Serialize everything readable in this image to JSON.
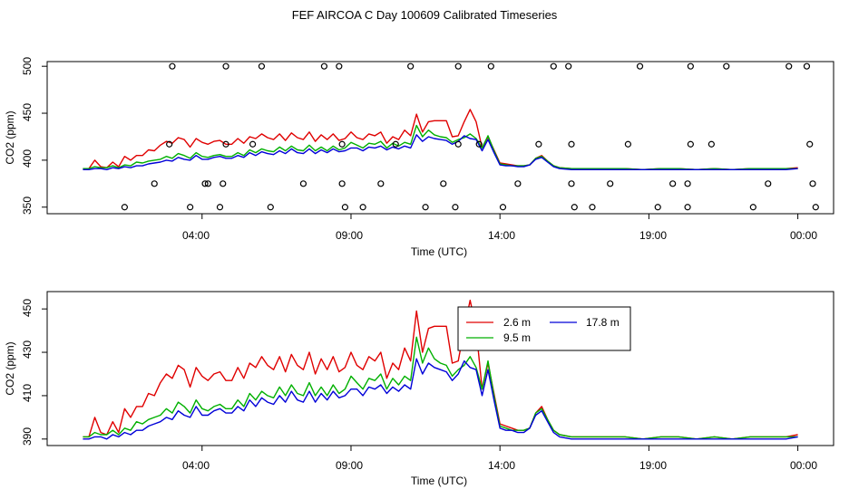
{
  "figure": {
    "title": "FEF AIRCOA C  Day 100609  Calibrated Timeseries"
  },
  "colors": {
    "red": "#e00000",
    "green": "#00b000",
    "blue": "#0000d8",
    "axis": "#000000"
  },
  "chart_data": [
    {
      "type": "line+scatter",
      "title": "",
      "xlabel": "Time (UTC)",
      "ylabel": "CO2 (ppm)",
      "xlim": [
        -1.2,
        25.2
      ],
      "ylim": [
        343,
        505
      ],
      "xticks": [
        4,
        9,
        14,
        19,
        24
      ],
      "xtick_labels": [
        "04:00",
        "09:00",
        "14:00",
        "19:00",
        "00:00"
      ],
      "yticks": [
        350,
        400,
        450,
        500
      ],
      "ytick_labels": [
        "350",
        "400",
        "450",
        "500"
      ],
      "calibration_points": [
        {
          "x": 1.4,
          "y": 350
        },
        {
          "x": 2.4,
          "y": 375
        },
        {
          "x": 2.9,
          "y": 417
        },
        {
          "x": 3.0,
          "y": 500
        },
        {
          "x": 3.6,
          "y": 350
        },
        {
          "x": 4.1,
          "y": 375
        },
        {
          "x": 4.2,
          "y": 375
        },
        {
          "x": 4.6,
          "y": 350
        },
        {
          "x": 4.7,
          "y": 375
        },
        {
          "x": 4.8,
          "y": 417
        },
        {
          "x": 4.8,
          "y": 500
        },
        {
          "x": 5.7,
          "y": 417
        },
        {
          "x": 6.0,
          "y": 500
        },
        {
          "x": 6.3,
          "y": 350
        },
        {
          "x": 7.4,
          "y": 375
        },
        {
          "x": 8.1,
          "y": 500
        },
        {
          "x": 8.6,
          "y": 500
        },
        {
          "x": 8.7,
          "y": 417
        },
        {
          "x": 8.7,
          "y": 375
        },
        {
          "x": 8.8,
          "y": 350
        },
        {
          "x": 9.4,
          "y": 350
        },
        {
          "x": 10.0,
          "y": 375
        },
        {
          "x": 10.5,
          "y": 417
        },
        {
          "x": 11.0,
          "y": 500
        },
        {
          "x": 11.5,
          "y": 350
        },
        {
          "x": 12.1,
          "y": 375
        },
        {
          "x": 12.5,
          "y": 350
        },
        {
          "x": 12.6,
          "y": 417
        },
        {
          "x": 12.6,
          "y": 500
        },
        {
          "x": 13.3,
          "y": 417
        },
        {
          "x": 13.7,
          "y": 500
        },
        {
          "x": 14.1,
          "y": 350
        },
        {
          "x": 14.6,
          "y": 375
        },
        {
          "x": 15.3,
          "y": 417
        },
        {
          "x": 15.8,
          "y": 500
        },
        {
          "x": 16.3,
          "y": 500
        },
        {
          "x": 16.4,
          "y": 417
        },
        {
          "x": 16.4,
          "y": 375
        },
        {
          "x": 16.5,
          "y": 350
        },
        {
          "x": 17.1,
          "y": 350
        },
        {
          "x": 17.7,
          "y": 375
        },
        {
          "x": 18.3,
          "y": 417
        },
        {
          "x": 18.7,
          "y": 500
        },
        {
          "x": 19.3,
          "y": 350
        },
        {
          "x": 19.8,
          "y": 375
        },
        {
          "x": 20.3,
          "y": 350
        },
        {
          "x": 20.3,
          "y": 375
        },
        {
          "x": 20.4,
          "y": 417
        },
        {
          "x": 20.4,
          "y": 500
        },
        {
          "x": 21.1,
          "y": 417
        },
        {
          "x": 21.6,
          "y": 500
        },
        {
          "x": 22.5,
          "y": 350
        },
        {
          "x": 23.0,
          "y": 375
        },
        {
          "x": 23.7,
          "y": 500
        },
        {
          "x": 24.3,
          "y": 500
        },
        {
          "x": 24.4,
          "y": 417
        },
        {
          "x": 24.5,
          "y": 375
        },
        {
          "x": 24.6,
          "y": 350
        }
      ]
    },
    {
      "type": "line",
      "title": "",
      "xlabel": "Time (UTC)",
      "ylabel": "CO2 (ppm)",
      "xlim": [
        -1.2,
        25.2
      ],
      "ylim": [
        387,
        458
      ],
      "xticks": [
        4,
        9,
        14,
        19,
        24
      ],
      "xtick_labels": [
        "04:00",
        "09:00",
        "14:00",
        "19:00",
        "00:00"
      ],
      "yticks": [
        390,
        410,
        430,
        450
      ],
      "ytick_labels": [
        "390",
        "410",
        "430",
        "450"
      ],
      "legend": {
        "position": "top-right",
        "entries": [
          {
            "label": "2.6 m",
            "color": "#e00000"
          },
          {
            "label": "9.5 m",
            "color": "#00b000"
          },
          {
            "label": "17.8 m",
            "color": "#0000d8"
          }
        ]
      }
    }
  ],
  "series_shared": {
    "x": [
      0.0,
      0.2,
      0.4,
      0.6,
      0.8,
      1.0,
      1.2,
      1.4,
      1.6,
      1.8,
      2.0,
      2.2,
      2.4,
      2.6,
      2.8,
      3.0,
      3.2,
      3.4,
      3.6,
      3.8,
      4.0,
      4.2,
      4.4,
      4.6,
      4.8,
      5.0,
      5.2,
      5.4,
      5.6,
      5.8,
      6.0,
      6.2,
      6.4,
      6.6,
      6.8,
      7.0,
      7.2,
      7.4,
      7.6,
      7.8,
      8.0,
      8.2,
      8.4,
      8.6,
      8.8,
      9.0,
      9.2,
      9.4,
      9.6,
      9.8,
      10.0,
      10.2,
      10.4,
      10.6,
      10.8,
      11.0,
      11.2,
      11.4,
      11.6,
      11.8,
      12.0,
      12.2,
      12.4,
      12.6,
      12.8,
      13.0,
      13.2,
      13.4,
      13.6,
      13.8,
      14.0,
      14.2,
      14.4,
      14.6,
      14.8,
      15.0,
      15.2,
      15.4,
      15.6,
      15.8,
      16.0,
      16.4,
      17.0,
      17.6,
      18.2,
      18.8,
      19.4,
      20.0,
      20.6,
      21.2,
      21.8,
      22.4,
      23.0,
      23.6,
      24.0
    ],
    "series": [
      {
        "name": "2.6 m",
        "color": "#e00000",
        "values": [
          391,
          391,
          400,
          393,
          392,
          398,
          393,
          404,
          400,
          405,
          405,
          411,
          410,
          416,
          420,
          418,
          424,
          422,
          414,
          423,
          419,
          417,
          420,
          421,
          417,
          417,
          423,
          418,
          425,
          423,
          428,
          424,
          422,
          428,
          421,
          429,
          424,
          422,
          430,
          420,
          427,
          422,
          428,
          421,
          423,
          430,
          424,
          422,
          428,
          426,
          430,
          418,
          425,
          422,
          432,
          426,
          449,
          430,
          441,
          442,
          442,
          442,
          425,
          426,
          441,
          454,
          441,
          413,
          425,
          411,
          397,
          396,
          395,
          394,
          394,
          395,
          402,
          405,
          399,
          394,
          392,
          391,
          391,
          391,
          391,
          390,
          391,
          391,
          390,
          391,
          390,
          391,
          391,
          391,
          392
        ]
      },
      {
        "name": "9.5 m",
        "color": "#00b000",
        "values": [
          391,
          391,
          393,
          392,
          392,
          394,
          392,
          395,
          394,
          398,
          397,
          399,
          400,
          401,
          404,
          402,
          407,
          405,
          402,
          408,
          404,
          403,
          405,
          406,
          404,
          404,
          408,
          405,
          411,
          408,
          412,
          410,
          409,
          414,
          410,
          415,
          411,
          410,
          416,
          410,
          414,
          410,
          415,
          411,
          413,
          419,
          416,
          413,
          418,
          417,
          420,
          413,
          418,
          415,
          419,
          417,
          437,
          425,
          432,
          427,
          425,
          424,
          419,
          422,
          424,
          428,
          423,
          413,
          426,
          410,
          396,
          395,
          394,
          394,
          394,
          395,
          402,
          404,
          399,
          394,
          392,
          391,
          391,
          391,
          391,
          390,
          391,
          391,
          390,
          391,
          390,
          391,
          391,
          391,
          391
        ]
      },
      {
        "name": "17.8 m",
        "color": "#0000d8",
        "values": [
          390,
          390,
          391,
          391,
          390,
          392,
          391,
          393,
          392,
          394,
          394,
          396,
          397,
          398,
          400,
          399,
          403,
          401,
          400,
          405,
          401,
          401,
          403,
          404,
          402,
          402,
          405,
          403,
          408,
          405,
          409,
          407,
          406,
          410,
          407,
          412,
          408,
          407,
          412,
          407,
          411,
          408,
          412,
          409,
          410,
          413,
          413,
          410,
          414,
          413,
          415,
          411,
          414,
          412,
          415,
          413,
          427,
          420,
          425,
          423,
          422,
          421,
          417,
          420,
          426,
          423,
          422,
          410,
          422,
          408,
          395,
          394,
          394,
          393,
          393,
          395,
          401,
          403,
          398,
          393,
          391,
          390,
          390,
          390,
          390,
          390,
          390,
          390,
          390,
          390,
          390,
          390,
          390,
          390,
          391
        ]
      }
    ]
  },
  "axis_labels": {
    "top": {
      "xlabel": "Time (UTC)",
      "ylabel": "CO2 (ppm)",
      "x1": "04:00",
      "x2": "09:00",
      "x3": "14:00",
      "x4": "19:00",
      "x5": "00:00",
      "y1": "350",
      "y2": "400",
      "y3": "450",
      "y4": "500"
    },
    "bottom": {
      "xlabel": "Time (UTC)",
      "ylabel": "CO2 (ppm)",
      "x1": "04:00",
      "x2": "09:00",
      "x3": "14:00",
      "x4": "19:00",
      "x5": "00:00",
      "y1": "390",
      "y2": "410",
      "y3": "430",
      "y4": "450"
    },
    "legend": {
      "e1": "2.6 m",
      "e2": "9.5 m",
      "e3": "17.8 m"
    }
  }
}
